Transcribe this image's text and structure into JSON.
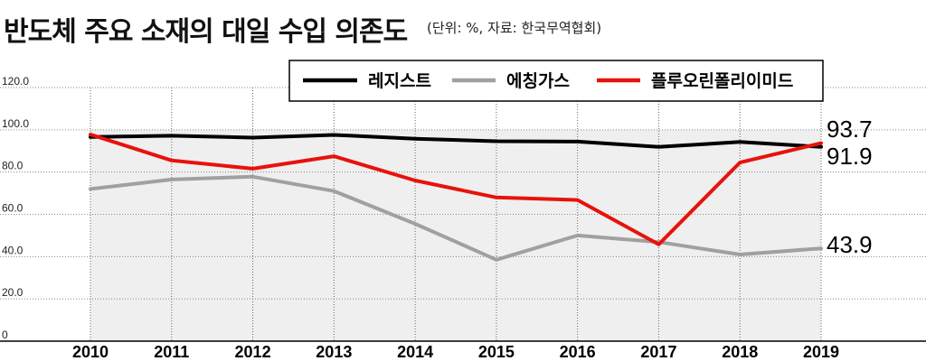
{
  "header": {
    "title": "반도체 주요 소재의 대일 수입 의존도",
    "subtitle": "(단위: %, 자료: 한국무역협회)"
  },
  "colors": {
    "grid": "#888888",
    "plot_bg": "#efefef"
  },
  "chart_data": {
    "type": "line",
    "title": "반도체 주요 소재의 대일 수입 의존도",
    "subtitle": "(단위: %, 자료: 한국무역협회)",
    "xlabel": "",
    "ylabel": "",
    "ylim": [
      0,
      120
    ],
    "yticks": [
      "0",
      "20.0",
      "40.0",
      "60.0",
      "80.0",
      "100.0",
      "120.0"
    ],
    "ytick_values": [
      0,
      20,
      40,
      60,
      80,
      100,
      120
    ],
    "categories": [
      "2010",
      "2011",
      "2012",
      "2013",
      "2014",
      "2015",
      "2016",
      "2017",
      "2018",
      "2019"
    ],
    "grid": true,
    "legend": "top-right",
    "series": [
      {
        "name": "레지스트",
        "color": "#000000",
        "values": [
          96.6,
          97.2,
          96.3,
          97.6,
          95.8,
          94.6,
          94.4,
          91.9,
          94.3,
          91.9
        ]
      },
      {
        "name": "에칭가스",
        "color": "#a0a0a0",
        "values": [
          72.0,
          76.5,
          77.8,
          71.0,
          55.5,
          38.5,
          50.0,
          46.9,
          41.0,
          43.9
        ]
      },
      {
        "name": "플루오린폴리이미드",
        "color": "#e8120c",
        "values": [
          97.8,
          85.5,
          81.6,
          87.5,
          76.0,
          68.0,
          66.8,
          45.8,
          84.5,
          93.7
        ]
      }
    ],
    "end_labels": [
      "91.9",
      "43.9",
      "93.7"
    ]
  }
}
